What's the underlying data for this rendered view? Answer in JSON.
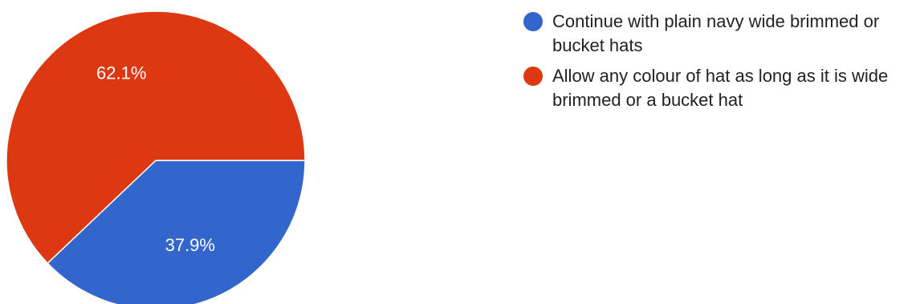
{
  "chart_data": {
    "type": "pie",
    "series": [
      {
        "name": "Continue with plain navy wide brimmed or bucket hats",
        "value": 37.9,
        "label": "37.9%",
        "color": "#3366cc"
      },
      {
        "name": "Allow any colour of hat as long as it is wide brimmed or a bucket hat",
        "value": 62.1,
        "label": "62.1%",
        "color": "#dc3912"
      }
    ],
    "legend_position": "right",
    "slice_border_color": "#ffffff"
  }
}
